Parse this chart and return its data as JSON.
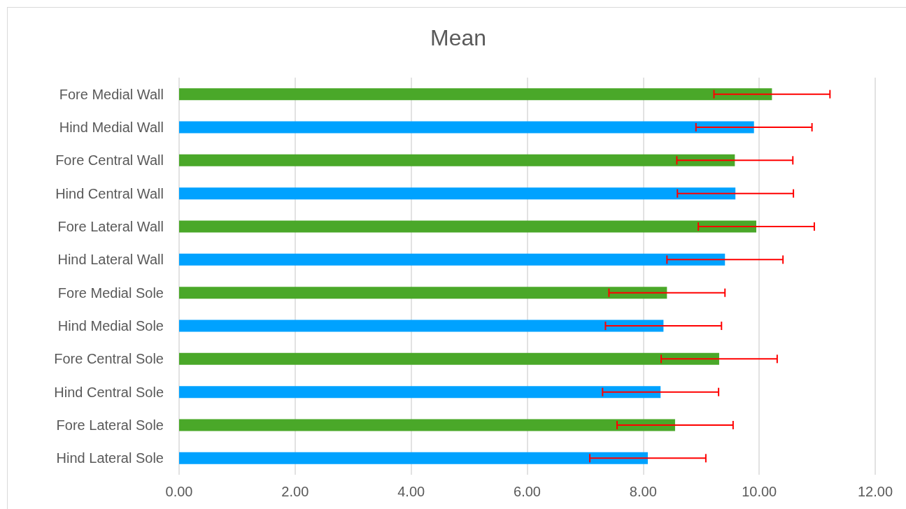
{
  "chart_data": {
    "type": "bar",
    "title": "Mean",
    "orientation": "horizontal",
    "categories": [
      "Fore Medial Wall",
      "Hind Medial Wall",
      "Fore Central Wall",
      "Hind Central Wall",
      "Fore Lateral Wall",
      "Hind Lateral Wall",
      "Fore Medial Sole",
      "Hind Medial Sole",
      "Fore Central Sole",
      "Hind Central Sole",
      "Fore Lateral Sole",
      "Hind Lateral Sole"
    ],
    "values": [
      10.22,
      9.91,
      9.58,
      9.59,
      9.95,
      9.41,
      8.41,
      8.35,
      9.31,
      8.3,
      8.55,
      8.08
    ],
    "errors": [
      1.0,
      1.0,
      1.0,
      1.0,
      1.0,
      1.0,
      1.0,
      1.0,
      1.0,
      1.0,
      1.0,
      1.0
    ],
    "colors": [
      "#4aa829",
      "#00a2ff",
      "#4aa829",
      "#00a2ff",
      "#4aa829",
      "#00a2ff",
      "#4aa829",
      "#00a2ff",
      "#4aa829",
      "#00a2ff",
      "#4aa829",
      "#00a2ff"
    ],
    "xlim": [
      0,
      12
    ],
    "xticks": [
      {
        "value": 0,
        "label": "0.00"
      },
      {
        "value": 2,
        "label": "2.00"
      },
      {
        "value": 4,
        "label": "4.00"
      },
      {
        "value": 6,
        "label": "6.00"
      },
      {
        "value": 8,
        "label": "8.00"
      },
      {
        "value": 10,
        "label": "10.00"
      },
      {
        "value": 12,
        "label": "12.00"
      }
    ],
    "grid": "x"
  }
}
